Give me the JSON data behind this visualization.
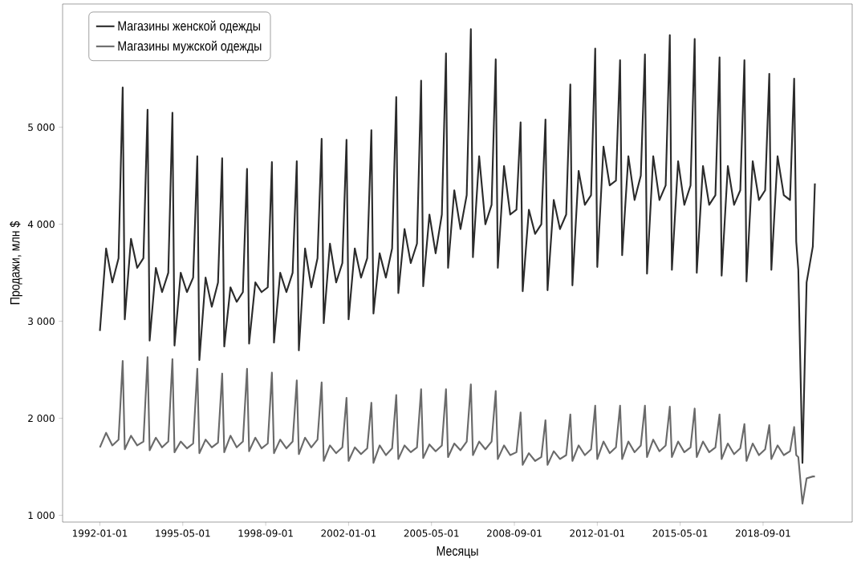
{
  "chart_data": {
    "type": "line",
    "xlabel": "Месяцы",
    "ylabel": "Продажи, млн $",
    "x": [
      "1992-01",
      "1992-04",
      "1992-07",
      "1992-10",
      "1992-12",
      "1993-01",
      "1993-04",
      "1993-07",
      "1993-10",
      "1993-12",
      "1994-01",
      "1994-04",
      "1994-07",
      "1994-10",
      "1994-12",
      "1995-01",
      "1995-04",
      "1995-07",
      "1995-10",
      "1995-12",
      "1996-01",
      "1996-04",
      "1996-07",
      "1996-10",
      "1996-12",
      "1997-01",
      "1997-04",
      "1997-07",
      "1997-10",
      "1997-12",
      "1998-01",
      "1998-04",
      "1998-07",
      "1998-10",
      "1998-12",
      "1999-01",
      "1999-04",
      "1999-07",
      "1999-10",
      "1999-12",
      "2000-01",
      "2000-04",
      "2000-07",
      "2000-10",
      "2000-12",
      "2001-01",
      "2001-04",
      "2001-07",
      "2001-10",
      "2001-12",
      "2002-01",
      "2002-04",
      "2002-07",
      "2002-10",
      "2002-12",
      "2003-01",
      "2003-04",
      "2003-07",
      "2003-10",
      "2003-12",
      "2004-01",
      "2004-04",
      "2004-07",
      "2004-10",
      "2004-12",
      "2005-01",
      "2005-04",
      "2005-07",
      "2005-10",
      "2005-12",
      "2006-01",
      "2006-04",
      "2006-07",
      "2006-10",
      "2006-12",
      "2007-01",
      "2007-04",
      "2007-07",
      "2007-10",
      "2007-12",
      "2008-01",
      "2008-04",
      "2008-07",
      "2008-10",
      "2008-12",
      "2009-01",
      "2009-04",
      "2009-07",
      "2009-10",
      "2009-12",
      "2010-01",
      "2010-04",
      "2010-07",
      "2010-10",
      "2010-12",
      "2011-01",
      "2011-04",
      "2011-07",
      "2011-10",
      "2011-12",
      "2012-01",
      "2012-04",
      "2012-07",
      "2012-10",
      "2012-12",
      "2013-01",
      "2013-04",
      "2013-07",
      "2013-10",
      "2013-12",
      "2014-01",
      "2014-04",
      "2014-07",
      "2014-10",
      "2014-12",
      "2015-01",
      "2015-04",
      "2015-07",
      "2015-10",
      "2015-12",
      "2016-01",
      "2016-04",
      "2016-07",
      "2016-10",
      "2016-12",
      "2017-01",
      "2017-04",
      "2017-07",
      "2017-10",
      "2017-12",
      "2018-01",
      "2018-04",
      "2018-07",
      "2018-10",
      "2018-12",
      "2019-01",
      "2019-04",
      "2019-07",
      "2019-10",
      "2019-12",
      "2020-01",
      "2020-02",
      "2020-04",
      "2020-06",
      "2020-09",
      "2020-10"
    ],
    "series": [
      {
        "name": "Магазины женской одежды",
        "color": "#2b2b2b",
        "values": [
          2900,
          3750,
          3400,
          3650,
          5410,
          3020,
          3850,
          3550,
          3650,
          5180,
          2800,
          3550,
          3300,
          3500,
          5150,
          2750,
          3500,
          3300,
          3450,
          4700,
          2600,
          3450,
          3150,
          3400,
          4680,
          2740,
          3350,
          3200,
          3300,
          4570,
          2770,
          3400,
          3300,
          3350,
          4640,
          2780,
          3500,
          3300,
          3500,
          4650,
          2700,
          3750,
          3350,
          3650,
          4880,
          2980,
          3800,
          3400,
          3600,
          4870,
          3020,
          3750,
          3450,
          3650,
          4970,
          3080,
          3700,
          3450,
          3750,
          5310,
          3290,
          3950,
          3600,
          3800,
          5480,
          3360,
          4100,
          3700,
          4100,
          5760,
          3550,
          4350,
          3950,
          4300,
          6010,
          3660,
          4700,
          4000,
          4200,
          5700,
          3550,
          4600,
          4100,
          4150,
          5050,
          3310,
          4150,
          3900,
          4000,
          5080,
          3320,
          4250,
          3950,
          4100,
          5440,
          3370,
          4550,
          4200,
          4300,
          5810,
          3560,
          4800,
          4400,
          4450,
          5690,
          3680,
          4700,
          4250,
          4500,
          5750,
          3490,
          4700,
          4250,
          4400,
          5950,
          3530,
          4650,
          4200,
          4400,
          5910,
          3500,
          4600,
          4200,
          4300,
          5720,
          3470,
          4600,
          4200,
          4350,
          5690,
          3410,
          4650,
          4250,
          4350,
          5550,
          3530,
          4700,
          4300,
          4250,
          5500,
          3820,
          3530,
          1540,
          3400,
          3770,
          4420
        ]
      },
      {
        "name": "Магазины мужской одежды",
        "color": "#6a6a6a",
        "values": [
          1700,
          1850,
          1720,
          1780,
          2590,
          1680,
          1820,
          1720,
          1760,
          2630,
          1670,
          1800,
          1700,
          1760,
          2610,
          1650,
          1760,
          1690,
          1740,
          2510,
          1640,
          1780,
          1700,
          1750,
          2460,
          1650,
          1820,
          1700,
          1760,
          2510,
          1660,
          1800,
          1690,
          1740,
          2470,
          1640,
          1780,
          1690,
          1760,
          2390,
          1630,
          1800,
          1700,
          1780,
          2370,
          1560,
          1720,
          1640,
          1700,
          2210,
          1560,
          1700,
          1630,
          1690,
          2160,
          1540,
          1720,
          1620,
          1690,
          2240,
          1580,
          1720,
          1650,
          1700,
          2300,
          1590,
          1730,
          1660,
          1720,
          2300,
          1600,
          1740,
          1670,
          1760,
          2350,
          1620,
          1760,
          1680,
          1760,
          2280,
          1580,
          1720,
          1620,
          1650,
          2060,
          1520,
          1640,
          1560,
          1600,
          1980,
          1520,
          1660,
          1580,
          1620,
          2040,
          1560,
          1720,
          1620,
          1680,
          2130,
          1580,
          1760,
          1640,
          1700,
          2130,
          1580,
          1760,
          1650,
          1720,
          2130,
          1600,
          1780,
          1660,
          1720,
          2120,
          1600,
          1760,
          1650,
          1700,
          2100,
          1600,
          1760,
          1650,
          1700,
          2040,
          1580,
          1740,
          1630,
          1690,
          1940,
          1560,
          1740,
          1620,
          1680,
          1930,
          1580,
          1720,
          1620,
          1660,
          1910,
          1620,
          1600,
          1120,
          1380,
          1400,
          1400
        ]
      }
    ],
    "xlim": [
      "1990-07",
      "2022-04"
    ],
    "xticks": [
      "1992-01-01",
      "1995-05-01",
      "1998-09-01",
      "2002-01-01",
      "2005-05-01",
      "2008-09-01",
      "2012-01-01",
      "2015-05-01",
      "2018-09-01"
    ],
    "ylim": [
      930,
      6270
    ],
    "yticks": [
      {
        "value": 1000,
        "label": "1 000"
      },
      {
        "value": 2000,
        "label": "2 000"
      },
      {
        "value": 3000,
        "label": "3 000"
      },
      {
        "value": 4000,
        "label": "4 000"
      },
      {
        "value": 5000,
        "label": "5 000"
      }
    ],
    "legend": "top left",
    "grid": false,
    "marker": "none",
    "line_style": "solid"
  }
}
